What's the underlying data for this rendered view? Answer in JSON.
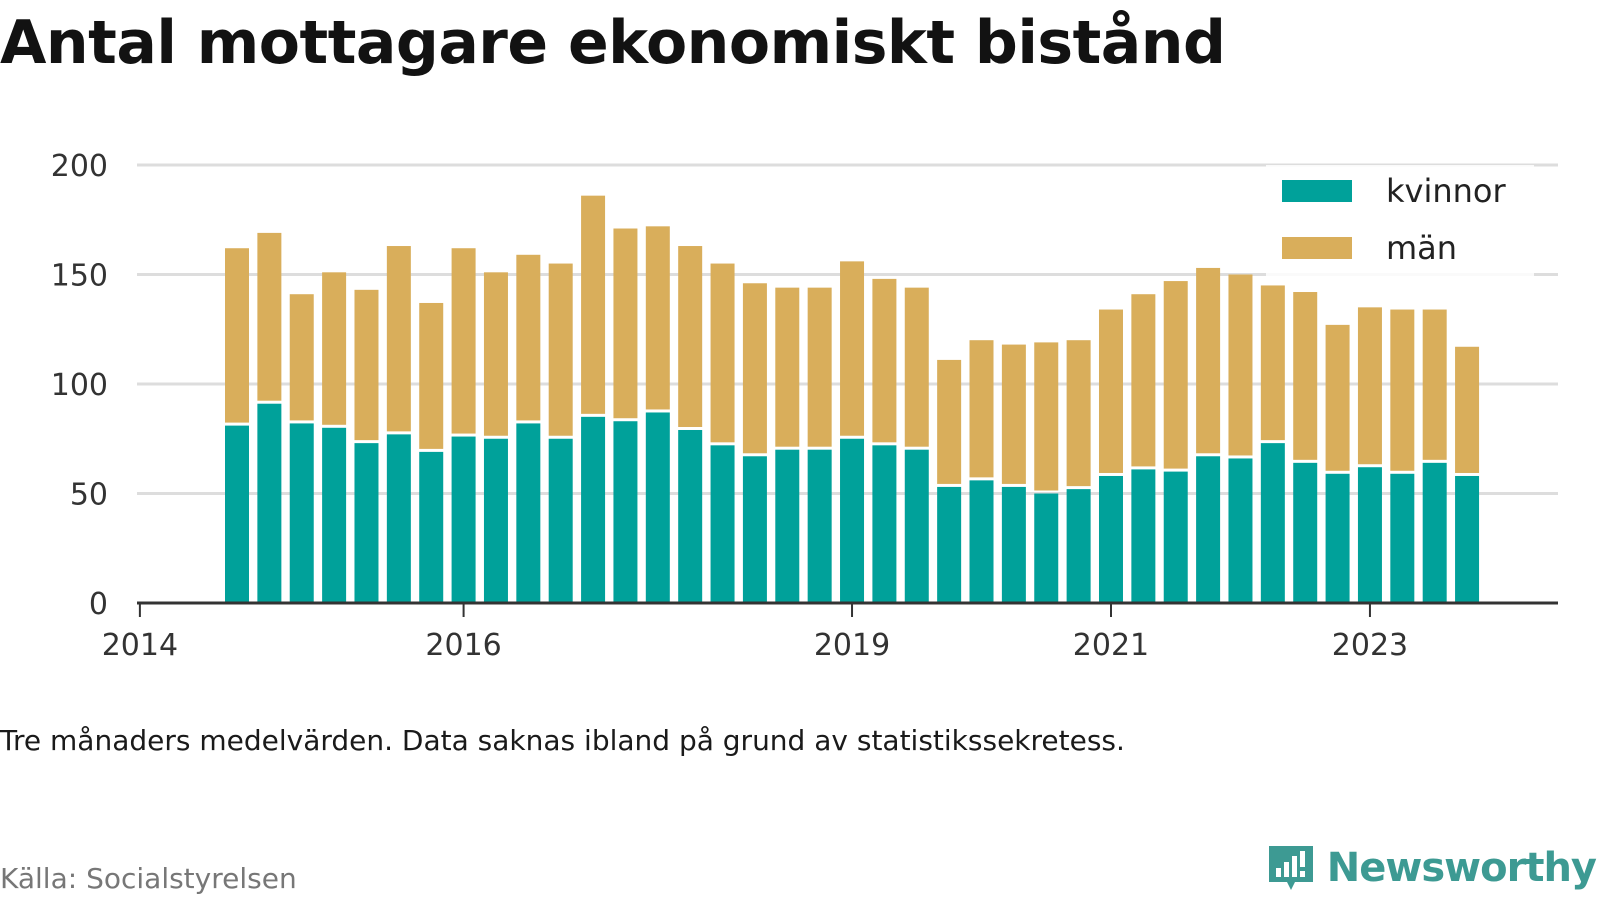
{
  "title": "Antal mottagare ekonomiskt bistånd",
  "note": "Tre månaders medelvärden. Data saknas ibland på grund av statistikssekretess.",
  "source": "Källa: Socialstyrelsen",
  "brand": {
    "name": "Newsworthy",
    "icon": "bar-chart-speech-bubble-icon"
  },
  "colors": {
    "kvinnor": "#00a19a",
    "man": "#d9ae5b",
    "grid": "#dddddd",
    "axis": "#333333",
    "brand": "#3d9a93"
  },
  "chart_data": {
    "type": "bar",
    "stacked": true,
    "title": "Antal mottagare ekonomiskt bistånd",
    "xlabel": "",
    "ylabel": "",
    "ylim": [
      0,
      200
    ],
    "yticks": [
      0,
      50,
      100,
      150,
      200
    ],
    "xticks": [
      "2014",
      "2016",
      "2019",
      "2021",
      "2023"
    ],
    "legend_position": "top-right",
    "grid": true,
    "categories": [
      "2014-Q2",
      "2014-Q3",
      "2014-Q4",
      "2015-Q1",
      "2015-Q2",
      "2015-Q3",
      "2015-Q4",
      "2016-Q1",
      "2016-Q2",
      "2016-Q3",
      "2016-Q4",
      "2017-Q1",
      "2017-Q2",
      "2017-Q3",
      "2017-Q4",
      "2018-Q1",
      "2018-Q2",
      "2018-Q3",
      "2018-Q4",
      "2019-Q1",
      "2019-Q2",
      "2019-Q3",
      "2019-Q4",
      "2020-Q1",
      "2020-Q2",
      "2020-Q3",
      "2020-Q4",
      "2021-Q1",
      "2021-Q2",
      "2021-Q3",
      "2021-Q4",
      "2022-Q1",
      "2022-Q2",
      "2022-Q3",
      "2022-Q4",
      "2023-Q1",
      "2023-Q2",
      "2023-Q3",
      "2023-Q4"
    ],
    "series": [
      {
        "name": "kvinnor",
        "values": [
          81,
          91,
          82,
          80,
          73,
          77,
          69,
          76,
          75,
          82,
          75,
          85,
          83,
          87,
          79,
          72,
          67,
          70,
          70,
          75,
          72,
          70,
          53,
          56,
          53,
          50,
          52,
          58,
          61,
          60,
          67,
          66,
          73,
          64,
          59,
          62,
          59,
          64,
          58
        ]
      },
      {
        "name": "män",
        "values": [
          81,
          78,
          59,
          71,
          70,
          86,
          68,
          86,
          76,
          77,
          80,
          101,
          88,
          85,
          84,
          83,
          79,
          74,
          74,
          81,
          76,
          74,
          58,
          64,
          65,
          69,
          68,
          76,
          80,
          87,
          86,
          84,
          72,
          78,
          68,
          73,
          75,
          70,
          59
        ]
      }
    ]
  }
}
